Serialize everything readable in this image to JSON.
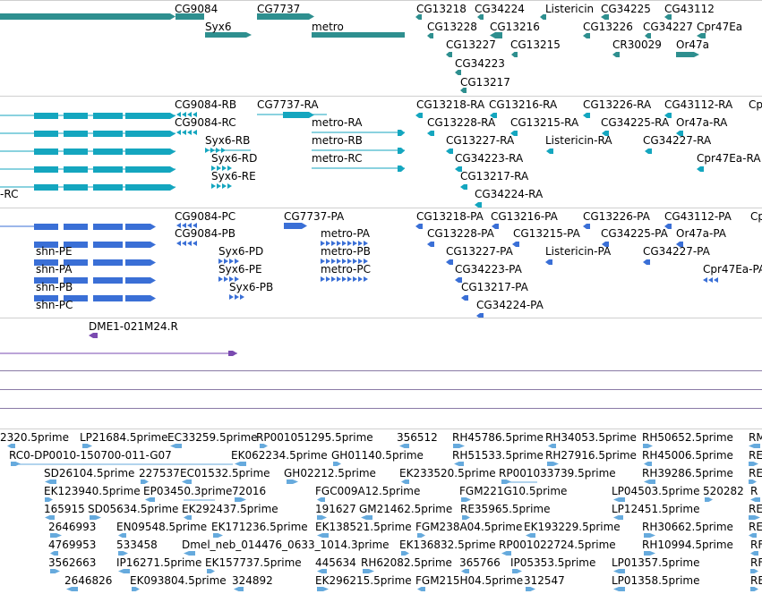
{
  "colors": {
    "gene": "#2e8f8f",
    "transcript": "#14a6bf",
    "protein": "#3a6fd6",
    "clone": "#7a4ab0",
    "est": "#66aadd",
    "separator": "#cfcfcf",
    "plain_line": "#8a7aa6"
  },
  "genes": [
    {
      "id": "g1",
      "label": "CG9084"
    },
    {
      "id": "g2",
      "label": "CG7737"
    },
    {
      "id": "g3",
      "label": "Syx6"
    },
    {
      "id": "g4",
      "label": "metro"
    },
    {
      "id": "g5",
      "label": "CG13218"
    },
    {
      "id": "g6",
      "label": "CG34224"
    },
    {
      "id": "g7",
      "label": "Listericin"
    },
    {
      "id": "g8",
      "label": "CG34225"
    },
    {
      "id": "g9",
      "label": "CG43112"
    },
    {
      "id": "g10",
      "label": "CG13228"
    },
    {
      "id": "g11",
      "label": "CG13216"
    },
    {
      "id": "g12",
      "label": "CG13226"
    },
    {
      "id": "g13",
      "label": "CG34227"
    },
    {
      "id": "g14",
      "label": "Cpr47Ea"
    },
    {
      "id": "g15",
      "label": "CG13227"
    },
    {
      "id": "g16",
      "label": "CG13215"
    },
    {
      "id": "g17",
      "label": "CR30029"
    },
    {
      "id": "g18",
      "label": "Or47a"
    },
    {
      "id": "g19",
      "label": "CG34223"
    },
    {
      "id": "g20",
      "label": "CG13217"
    }
  ],
  "transcripts": [
    {
      "id": "t1",
      "label": "CG9084-RB"
    },
    {
      "id": "t2",
      "label": "CG7737-RA"
    },
    {
      "id": "t3",
      "label": "CG13218-RA"
    },
    {
      "id": "t4",
      "label": "CG13216-RA"
    },
    {
      "id": "t5",
      "label": "CG13226-RA"
    },
    {
      "id": "t6",
      "label": "CG43112-RA"
    },
    {
      "id": "t7",
      "label": "Cp"
    },
    {
      "id": "t8",
      "label": "CG9084-RC"
    },
    {
      "id": "t9",
      "label": "metro-RA"
    },
    {
      "id": "t10",
      "label": "CG13228-RA"
    },
    {
      "id": "t11",
      "label": "CG13215-RA"
    },
    {
      "id": "t12",
      "label": "CG34225-RA"
    },
    {
      "id": "t13",
      "label": "Or47a-RA"
    },
    {
      "id": "t14",
      "label": "Syx6-RB"
    },
    {
      "id": "t15",
      "label": "metro-RB"
    },
    {
      "id": "t16",
      "label": "CG13227-RA"
    },
    {
      "id": "t17",
      "label": "Listericin-RA"
    },
    {
      "id": "t18",
      "label": "CG34227-RA"
    },
    {
      "id": "t19",
      "label": "Syx6-RD"
    },
    {
      "id": "t20",
      "label": "metro-RC"
    },
    {
      "id": "t21",
      "label": "CG34223-RA"
    },
    {
      "id": "t22",
      "label": "Cpr47Ea-RA"
    },
    {
      "id": "t23",
      "label": "Syx6-RE"
    },
    {
      "id": "t24",
      "label": "CG13217-RA"
    },
    {
      "id": "t25",
      "label": "-RC"
    },
    {
      "id": "t26",
      "label": "CG34224-RA"
    }
  ],
  "proteins": [
    {
      "id": "p1",
      "label": "CG9084-PC"
    },
    {
      "id": "p2",
      "label": "CG7737-PA"
    },
    {
      "id": "p3",
      "label": "CG13218-PA"
    },
    {
      "id": "p4",
      "label": "CG13216-PA"
    },
    {
      "id": "p5",
      "label": "CG13226-PA"
    },
    {
      "id": "p6",
      "label": "CG43112-PA"
    },
    {
      "id": "p7",
      "label": "Cp"
    },
    {
      "id": "p8",
      "label": "CG9084-PB"
    },
    {
      "id": "p9",
      "label": "metro-PA"
    },
    {
      "id": "p10",
      "label": "CG13228-PA"
    },
    {
      "id": "p11",
      "label": "CG13215-PA"
    },
    {
      "id": "p12",
      "label": "CG34225-PA"
    },
    {
      "id": "p13",
      "label": "Or47a-PA"
    },
    {
      "id": "p14",
      "label": "shn-PE"
    },
    {
      "id": "p15",
      "label": "Syx6-PD"
    },
    {
      "id": "p16",
      "label": "metro-PB"
    },
    {
      "id": "p17",
      "label": "CG13227-PA"
    },
    {
      "id": "p18",
      "label": "Listericin-PA"
    },
    {
      "id": "p19",
      "label": "CG34227-PA"
    },
    {
      "id": "p20",
      "label": "shn-PA"
    },
    {
      "id": "p21",
      "label": "Syx6-PE"
    },
    {
      "id": "p22",
      "label": "metro-PC"
    },
    {
      "id": "p23",
      "label": "CG34223-PA"
    },
    {
      "id": "p24",
      "label": "Cpr47Ea-PA"
    },
    {
      "id": "p25",
      "label": "shn-PB"
    },
    {
      "id": "p26",
      "label": "Syx6-PB"
    },
    {
      "id": "p27",
      "label": "CG13217-PA"
    },
    {
      "id": "p28",
      "label": "shn-PC"
    },
    {
      "id": "p29",
      "label": "CG34224-PA"
    }
  ],
  "clone": {
    "label": "DME1-021M24.R"
  },
  "ests": [
    {
      "id": "e1",
      "label": "2320.5prime"
    },
    {
      "id": "e2",
      "label": "LP21684.5prime"
    },
    {
      "id": "e3",
      "label": "EC33259.5prime"
    },
    {
      "id": "e4",
      "label": "RP001051295.5prime"
    },
    {
      "id": "e5",
      "label": "356512"
    },
    {
      "id": "e6",
      "label": "RH45786.5prime"
    },
    {
      "id": "e7",
      "label": "RH34053.5prime"
    },
    {
      "id": "e8",
      "label": "RH50652.5prime"
    },
    {
      "id": "e9",
      "label": "RM"
    },
    {
      "id": "e10",
      "label": "RC0-DP0010-150700-011-G07"
    },
    {
      "id": "e11",
      "label": "EK062234.5prime"
    },
    {
      "id": "e12",
      "label": "GH01140.5prime"
    },
    {
      "id": "e13",
      "label": "RH51533.5prime"
    },
    {
      "id": "e14",
      "label": "RH27916.5prime"
    },
    {
      "id": "e15",
      "label": "RH45006.5prime"
    },
    {
      "id": "e16",
      "label": "RE"
    },
    {
      "id": "e17",
      "label": "SD26104.5prime"
    },
    {
      "id": "e18",
      "label": "227537"
    },
    {
      "id": "e19",
      "label": "EC01532.5prime"
    },
    {
      "id": "e20",
      "label": "GH02212.5prime"
    },
    {
      "id": "e21",
      "label": "EK233520.5prime"
    },
    {
      "id": "e22",
      "label": "RP001033739.5prime"
    },
    {
      "id": "e23",
      "label": "RH39286.5prime"
    },
    {
      "id": "e24",
      "label": "RE"
    },
    {
      "id": "e25",
      "label": "EK123940.5prime"
    },
    {
      "id": "e26",
      "label": "EP03450.3prime"
    },
    {
      "id": "e27",
      "label": "72016"
    },
    {
      "id": "e28",
      "label": "FGC009A12.5prime"
    },
    {
      "id": "e29",
      "label": "FGM221G10.5prime"
    },
    {
      "id": "e30",
      "label": "LP04503.5prime"
    },
    {
      "id": "e31",
      "label": "520282"
    },
    {
      "id": "e32",
      "label": "R"
    },
    {
      "id": "e33",
      "label": "165915"
    },
    {
      "id": "e34",
      "label": "SD05634.5prime"
    },
    {
      "id": "e35",
      "label": "EK292437.5prime"
    },
    {
      "id": "e36",
      "label": "191627"
    },
    {
      "id": "e37",
      "label": "GM21462.5prime"
    },
    {
      "id": "e38",
      "label": "RE35965.5prime"
    },
    {
      "id": "e39",
      "label": "LP12451.5prime"
    },
    {
      "id": "e40",
      "label": "RE"
    },
    {
      "id": "e41",
      "label": "2646993"
    },
    {
      "id": "e42",
      "label": "EN09548.5prime"
    },
    {
      "id": "e43",
      "label": "EK171236.5prime"
    },
    {
      "id": "e44",
      "label": "EK138521.5prime"
    },
    {
      "id": "e45",
      "label": "FGM238A04.5prime"
    },
    {
      "id": "e46",
      "label": "EK193229.5prime"
    },
    {
      "id": "e47",
      "label": "RH30662.5prime"
    },
    {
      "id": "e48",
      "label": "RE"
    },
    {
      "id": "e49",
      "label": "4769953"
    },
    {
      "id": "e50",
      "label": "533458"
    },
    {
      "id": "e51",
      "label": "Dmel_neb_014476_0633_1014.3prime"
    },
    {
      "id": "e52",
      "label": "EK136832.5prime"
    },
    {
      "id": "e53",
      "label": "RP001022724.5prime"
    },
    {
      "id": "e54",
      "label": "RH10994.5prime"
    },
    {
      "id": "e55",
      "label": "RF"
    },
    {
      "id": "e56",
      "label": "3562663"
    },
    {
      "id": "e57",
      "label": "IP16271.5prime"
    },
    {
      "id": "e58",
      "label": "EK157737.5prime"
    },
    {
      "id": "e59",
      "label": "445634"
    },
    {
      "id": "e60",
      "label": "RH62082.5prime"
    },
    {
      "id": "e61",
      "label": "365766"
    },
    {
      "id": "e62",
      "label": "IP05353.5prime"
    },
    {
      "id": "e63",
      "label": "LP01357.5prime"
    },
    {
      "id": "e64",
      "label": "RF"
    },
    {
      "id": "e65",
      "label": "2646826"
    },
    {
      "id": "e66",
      "label": "EK093804.5prime"
    },
    {
      "id": "e67",
      "label": "324892"
    },
    {
      "id": "e68",
      "label": "EK296215.5prime"
    },
    {
      "id": "e69",
      "label": "FGM215H04.5prime"
    },
    {
      "id": "e70",
      "label": "312547"
    },
    {
      "id": "e71",
      "label": "LP01358.5prime"
    },
    {
      "id": "e72",
      "label": "RE"
    }
  ]
}
